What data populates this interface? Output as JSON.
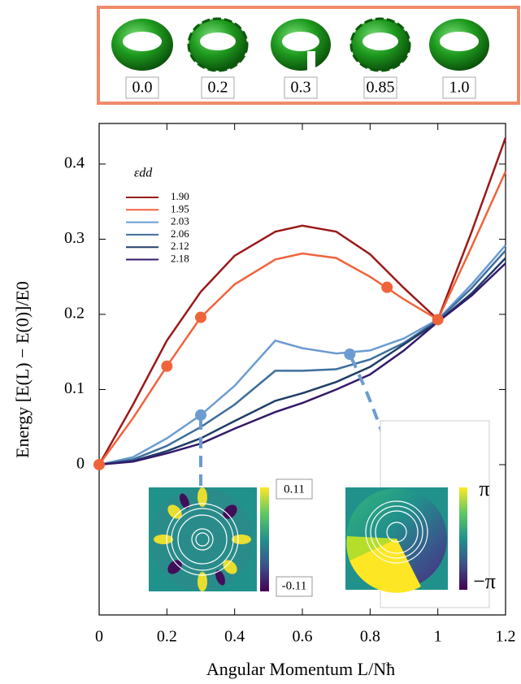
{
  "snapshots": {
    "labels": [
      "0.0",
      "0.2",
      "0.3",
      "0.85",
      "1.0"
    ]
  },
  "insets": [
    {
      "labels": [
        "0.11",
        "-0.11"
      ]
    },
    {
      "labels": [
        "π",
        "−π"
      ]
    }
  ],
  "chart_data": {
    "type": "line",
    "xlabel": "Angular Momentum L/Nħ",
    "ylabel": "Energy [E(L) − E(0)]/E0",
    "legend_title": "εdd",
    "x": [
      0,
      0.1,
      0.2,
      0.3,
      0.4,
      0.52,
      0.6,
      0.7,
      0.8,
      0.9,
      1.0,
      1.1,
      1.2
    ],
    "series": [
      {
        "name": "1.90",
        "color": "#9a1a1a",
        "values": [
          0,
          0.08,
          0.165,
          0.23,
          0.278,
          0.31,
          0.318,
          0.31,
          0.28,
          0.235,
          0.193,
          0.31,
          0.435
        ]
      },
      {
        "name": "1.95",
        "color": "#f0643c",
        "values": [
          0,
          0.062,
          0.131,
          0.196,
          0.24,
          0.273,
          0.281,
          0.275,
          0.25,
          0.22,
          0.193,
          0.29,
          0.39
        ]
      },
      {
        "name": "2.03",
        "color": "#6b9bd1",
        "values": [
          0,
          0.01,
          0.035,
          0.066,
          0.105,
          0.165,
          0.155,
          0.148,
          0.152,
          0.168,
          0.193,
          0.24,
          0.292
        ]
      },
      {
        "name": "2.06",
        "color": "#3d6e9c",
        "values": [
          0,
          0.007,
          0.025,
          0.05,
          0.08,
          0.125,
          0.125,
          0.127,
          0.14,
          0.162,
          0.192,
          0.235,
          0.285
        ]
      },
      {
        "name": "2.12",
        "color": "#1f3e66",
        "values": [
          0,
          0.005,
          0.018,
          0.035,
          0.058,
          0.085,
          0.095,
          0.11,
          0.13,
          0.16,
          0.19,
          0.228,
          0.275
        ]
      },
      {
        "name": "2.18",
        "color": "#34196b",
        "values": [
          0,
          0.004,
          0.015,
          0.028,
          0.048,
          0.07,
          0.082,
          0.1,
          0.12,
          0.152,
          0.19,
          0.225,
          0.268
        ]
      }
    ],
    "markers": {
      "x": [
        0,
        0.2,
        0.3,
        0.85,
        1.0,
        0.3,
        0.74
      ],
      "y": [
        0,
        0.131,
        0.196,
        0.236,
        0.193,
        0.066,
        0.147
      ],
      "colors": [
        "#f0643c",
        "#f0643c",
        "#f0643c",
        "#f0643c",
        "#f0643c",
        "#6b9bd1",
        "#6b9bd1"
      ]
    },
    "xlim": [
      0,
      1.2
    ],
    "ylim": [
      -0.2,
      0.454
    ],
    "xticks": [
      0,
      0.2,
      0.4,
      0.6,
      0.8,
      1,
      1.2
    ],
    "yticks": [
      0,
      0.1,
      0.2,
      0.3,
      0.4
    ]
  }
}
